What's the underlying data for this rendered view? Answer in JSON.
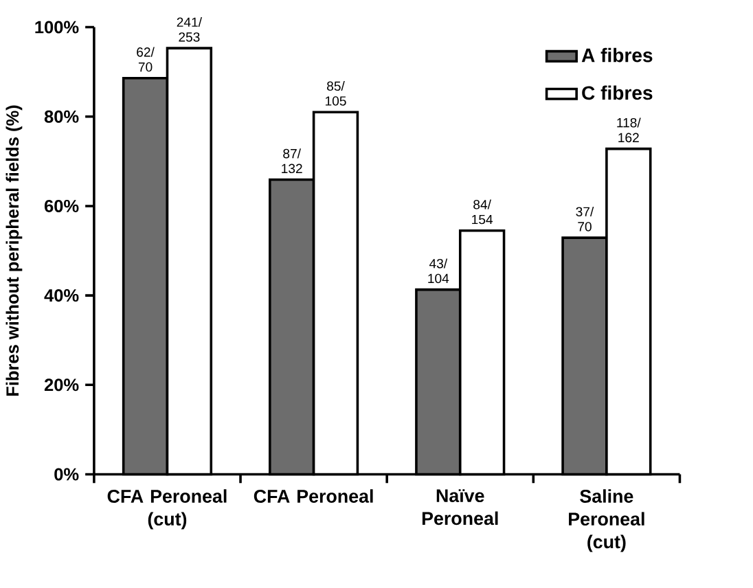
{
  "chart_data": {
    "type": "bar",
    "ylabel": "Fibres without peripheral fields (%)",
    "categories": [
      "CFA Peroneal (cut)",
      "CFA Peroneal",
      "Naïve Peroneal",
      "Saline Peroneal (cut)"
    ],
    "series": [
      {
        "name": "A fibres",
        "color": "#6d6d6d",
        "values": [
          88.6,
          65.9,
          41.3,
          52.9
        ],
        "value_labels": [
          "62/ 70",
          "87/ 132",
          "43/ 104",
          "37/ 70"
        ]
      },
      {
        "name": "C fibres",
        "color": "#ffffff",
        "values": [
          95.3,
          81.0,
          54.5,
          72.8
        ],
        "value_labels": [
          "241/ 253",
          "85/ 105",
          "84/ 154",
          "118/ 162"
        ]
      }
    ],
    "ylim": [
      0,
      100
    ],
    "yticks": [
      {
        "value": 0,
        "label": "0%"
      },
      {
        "value": 20,
        "label": "20%"
      },
      {
        "value": 40,
        "label": "40%"
      },
      {
        "value": 60,
        "label": "60%"
      },
      {
        "value": 80,
        "label": "80%"
      },
      {
        "value": 100,
        "label": "100%"
      }
    ],
    "grid": false,
    "legend": "top right"
  }
}
